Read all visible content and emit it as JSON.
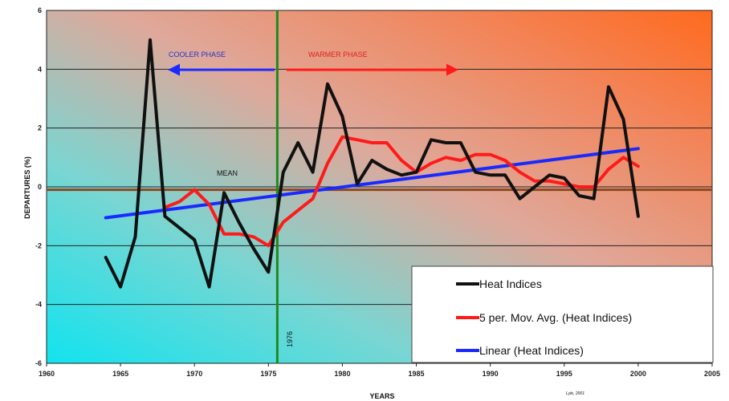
{
  "chart_data": {
    "type": "line",
    "xlabel": "YEARS",
    "ylabel": "DEPARTURES (%)",
    "xlim": [
      1960,
      2005
    ],
    "ylim": [
      -6,
      6
    ],
    "x_ticks": [
      "1960",
      "1965",
      "1970",
      "1975",
      "1980",
      "1985",
      "1990",
      "1995",
      "2000",
      "2005"
    ],
    "y_ticks": [
      "-6",
      "-4",
      "-2",
      "0",
      "2",
      "4",
      "6"
    ],
    "grid": "horizontal",
    "legend_position": "bottom-right",
    "background": "gradient: cyan (bottom-left) to orange (top-right)",
    "series": [
      {
        "name": "Heat Indices",
        "color": "#111111",
        "x": [
          1964,
          1965,
          1966,
          1967,
          1968,
          1969,
          1970,
          1971,
          1972,
          1973,
          1974,
          1975,
          1976,
          1977,
          1978,
          1979,
          1980,
          1981,
          1982,
          1983,
          1984,
          1985,
          1986,
          1987,
          1988,
          1989,
          1990,
          1991,
          1992,
          1993,
          1994,
          1995,
          1996,
          1997,
          1998,
          1999,
          2000
        ],
        "y": [
          -2.4,
          -3.4,
          -1.7,
          5.0,
          -1.0,
          -1.4,
          -1.8,
          -3.4,
          -0.2,
          -1.2,
          -2.1,
          -2.9,
          0.5,
          1.5,
          0.5,
          3.5,
          2.4,
          0.1,
          0.9,
          0.6,
          0.4,
          0.5,
          1.6,
          1.5,
          1.5,
          0.5,
          0.4,
          0.4,
          -0.4,
          0.0,
          0.4,
          0.3,
          -0.3,
          -0.4,
          3.4,
          2.3,
          -1.0
        ]
      },
      {
        "name": "5 per. Mov. Avg. (Heat Indices)",
        "color": "#ff1a1a",
        "x": [
          1968,
          1969,
          1970,
          1971,
          1972,
          1973,
          1974,
          1975,
          1976,
          1977,
          1978,
          1979,
          1980,
          1981,
          1982,
          1983,
          1984,
          1985,
          1986,
          1987,
          1988,
          1989,
          1990,
          1991,
          1992,
          1993,
          1994,
          1995,
          1996,
          1997,
          1998,
          1999,
          2000
        ],
        "y": [
          -0.7,
          -0.5,
          -0.1,
          -0.6,
          -1.6,
          -1.6,
          -1.7,
          -2.0,
          -1.2,
          -0.8,
          -0.4,
          0.8,
          1.7,
          1.6,
          1.5,
          1.5,
          0.9,
          0.5,
          0.8,
          1.0,
          0.9,
          1.1,
          1.1,
          0.9,
          0.5,
          0.2,
          0.2,
          0.1,
          0.0,
          0.0,
          0.6,
          1.0,
          0.7
        ]
      },
      {
        "name": "Linear (Heat Indices)",
        "color": "#1a2aff",
        "x": [
          1964,
          2000
        ],
        "y": [
          -1.05,
          1.3
        ]
      }
    ],
    "annotations": [
      {
        "text": "COOLER PHASE",
        "color": "#2233cc"
      },
      {
        "text": "WARMER PHASE",
        "color": "#dd2222"
      },
      {
        "text": "MEAN",
        "color": "#111111"
      },
      {
        "text": "1976",
        "color": "#111111"
      },
      {
        "text": "Lyle, 2001",
        "color": "#111111"
      }
    ],
    "reference_lines": {
      "mean_y": -0.1,
      "divider_x": 1975.6
    }
  }
}
